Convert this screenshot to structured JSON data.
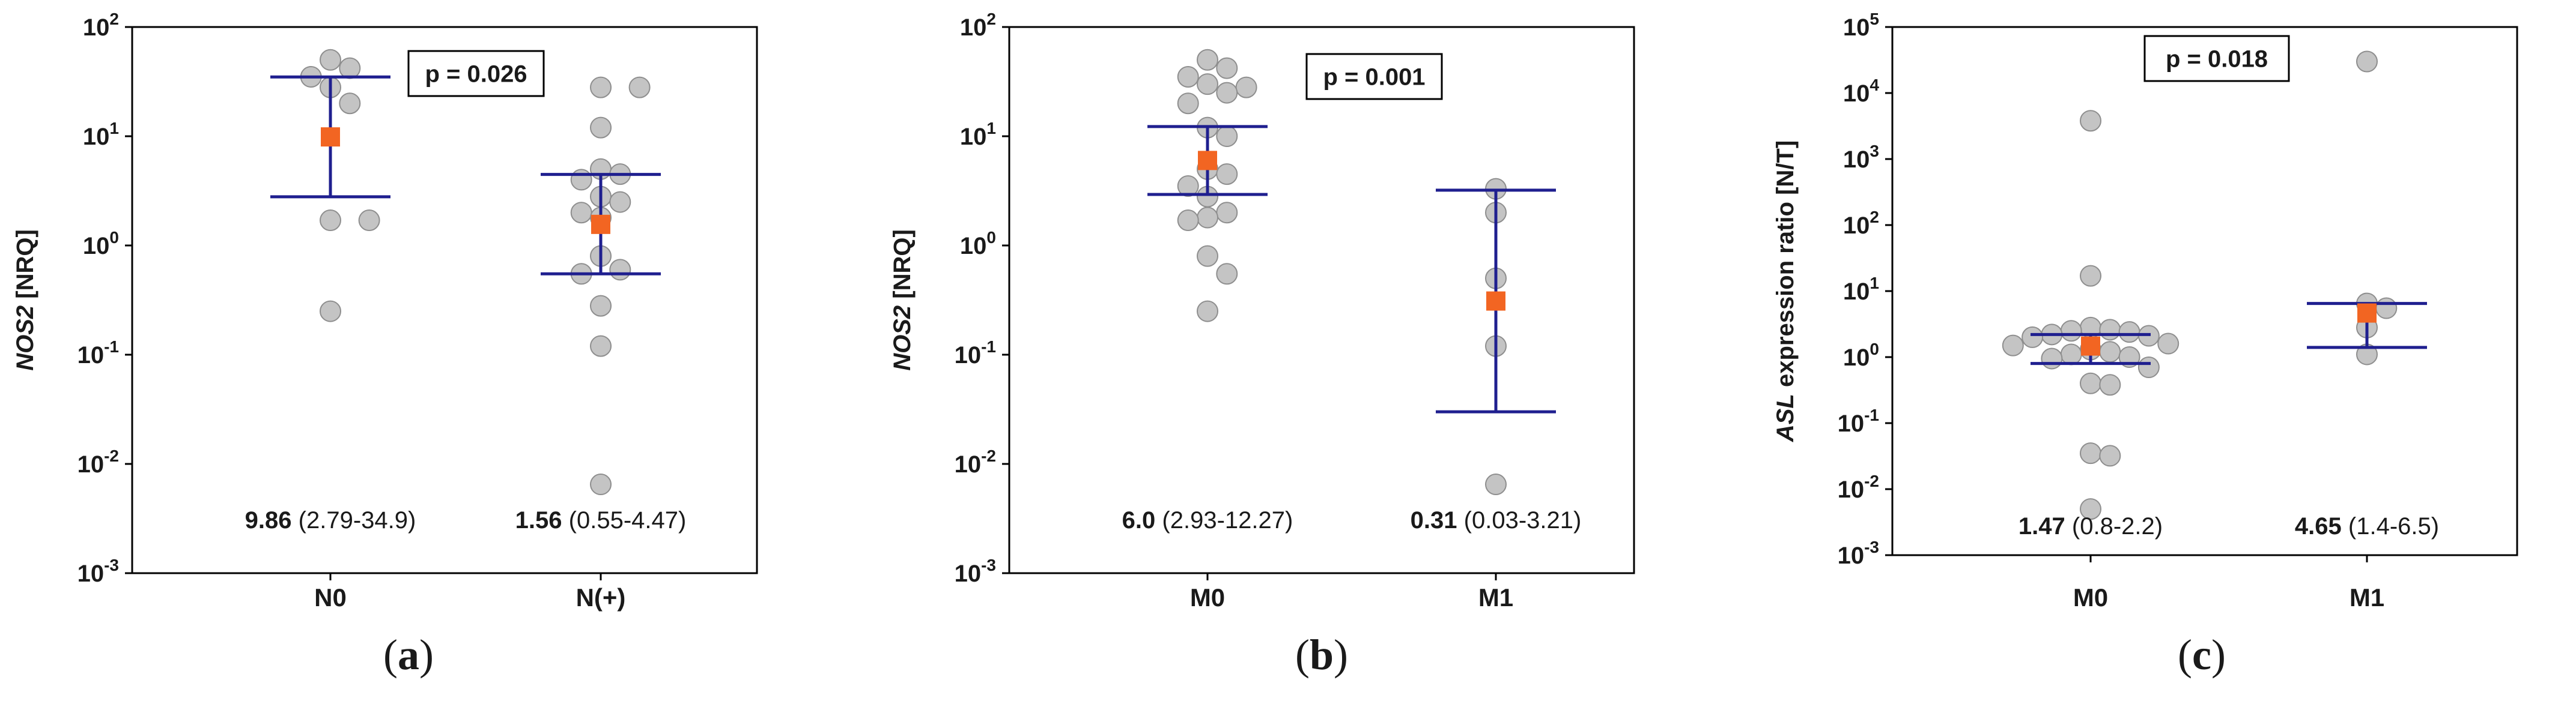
{
  "chart_data": [
    {
      "type": "scatter",
      "panel_label": "a",
      "ylabel_gene": "NOS2",
      "ylabel_rest": " [NRQ]",
      "yscale": "log",
      "ylim": [
        0.001,
        100
      ],
      "y_ticks": [
        {
          "base": "10",
          "exp": "-3"
        },
        {
          "base": "10",
          "exp": "-2"
        },
        {
          "base": "10",
          "exp": "-1"
        },
        {
          "base": "10",
          "exp": "0"
        },
        {
          "base": "10",
          "exp": "1"
        },
        {
          "base": "10",
          "exp": "2"
        }
      ],
      "p_value": "p = 0.026",
      "groups": [
        {
          "name": "N0",
          "points": [
            50,
            42,
            35,
            28,
            20,
            1.7,
            1.7,
            0.25
          ],
          "median": 9.86,
          "ci": [
            2.79,
            34.9
          ],
          "median_label": "9.86",
          "ci_label": " (2.79-34.9)"
        },
        {
          "name": "N(+)",
          "points": [
            28,
            28,
            12,
            5,
            4.5,
            4,
            2.8,
            2.5,
            2,
            1.8,
            0.8,
            0.6,
            0.55,
            0.28,
            0.12,
            0.0065
          ],
          "median": 1.56,
          "ci": [
            0.55,
            4.47
          ],
          "median_label": "1.56",
          "ci_label": " (0.55-4.47)"
        }
      ]
    },
    {
      "type": "scatter",
      "panel_label": "b",
      "ylabel_gene": "NOS2",
      "ylabel_rest": " [NRQ]",
      "yscale": "log",
      "ylim": [
        0.001,
        100
      ],
      "y_ticks": [
        {
          "base": "10",
          "exp": "-3"
        },
        {
          "base": "10",
          "exp": "-2"
        },
        {
          "base": "10",
          "exp": "-1"
        },
        {
          "base": "10",
          "exp": "0"
        },
        {
          "base": "10",
          "exp": "1"
        },
        {
          "base": "10",
          "exp": "2"
        }
      ],
      "p_value": "p = 0.001",
      "groups": [
        {
          "name": "M0",
          "points": [
            50,
            42,
            35,
            30,
            28,
            25,
            20,
            12,
            10,
            5,
            4.5,
            3.5,
            2.8,
            2,
            1.8,
            1.7,
            0.8,
            0.55,
            0.25
          ],
          "median": 6.0,
          "ci": [
            2.93,
            12.27
          ],
          "median_label": "6.0",
          "ci_label": " (2.93-12.27)"
        },
        {
          "name": "M1",
          "points": [
            3.3,
            2,
            0.5,
            0.12,
            0.0065
          ],
          "median": 0.31,
          "ci": [
            0.03,
            3.21
          ],
          "median_label": "0.31",
          "ci_label": " (0.03-3.21)"
        }
      ]
    },
    {
      "type": "scatter",
      "panel_label": "c",
      "ylabel_gene": "ASL",
      "ylabel_rest": "  expression ratio [N/T]",
      "yscale": "log",
      "ylim": [
        0.001,
        100000
      ],
      "y_ticks": [
        {
          "base": "10",
          "exp": "-3"
        },
        {
          "base": "10",
          "exp": "-2"
        },
        {
          "base": "10",
          "exp": "-1"
        },
        {
          "base": "10",
          "exp": "0"
        },
        {
          "base": "10",
          "exp": "1"
        },
        {
          "base": "10",
          "exp": "2"
        },
        {
          "base": "10",
          "exp": "3"
        },
        {
          "base": "10",
          "exp": "4"
        },
        {
          "base": "10",
          "exp": "5"
        }
      ],
      "p_value": "p = 0.018",
      "groups": [
        {
          "name": "M0",
          "points": [
            3800,
            17,
            2.8,
            2.6,
            2.5,
            2.4,
            2.2,
            2.1,
            2.0,
            1.6,
            1.5,
            1.3,
            1.2,
            1.1,
            1.0,
            0.95,
            0.7,
            0.4,
            0.38,
            0.035,
            0.032,
            0.005
          ],
          "median": 1.47,
          "ci": [
            0.8,
            2.2
          ],
          "median_label": "1.47",
          "ci_label": " (0.8-2.2)"
        },
        {
          "name": "M1",
          "points": [
            30000,
            6.5,
            5.5,
            2.8,
            1.1
          ],
          "median": 4.65,
          "ci": [
            1.4,
            6.5
          ],
          "median_label": "4.65",
          "ci_label": " (1.4-6.5)"
        }
      ]
    }
  ],
  "colors": {
    "point_fill": "#c4c4c4",
    "point_stroke": "#8e8e8e",
    "median_marker": "#f26522",
    "ci_line": "#1f1f8f",
    "axis": "#000000",
    "text": "#1a1a1a"
  }
}
